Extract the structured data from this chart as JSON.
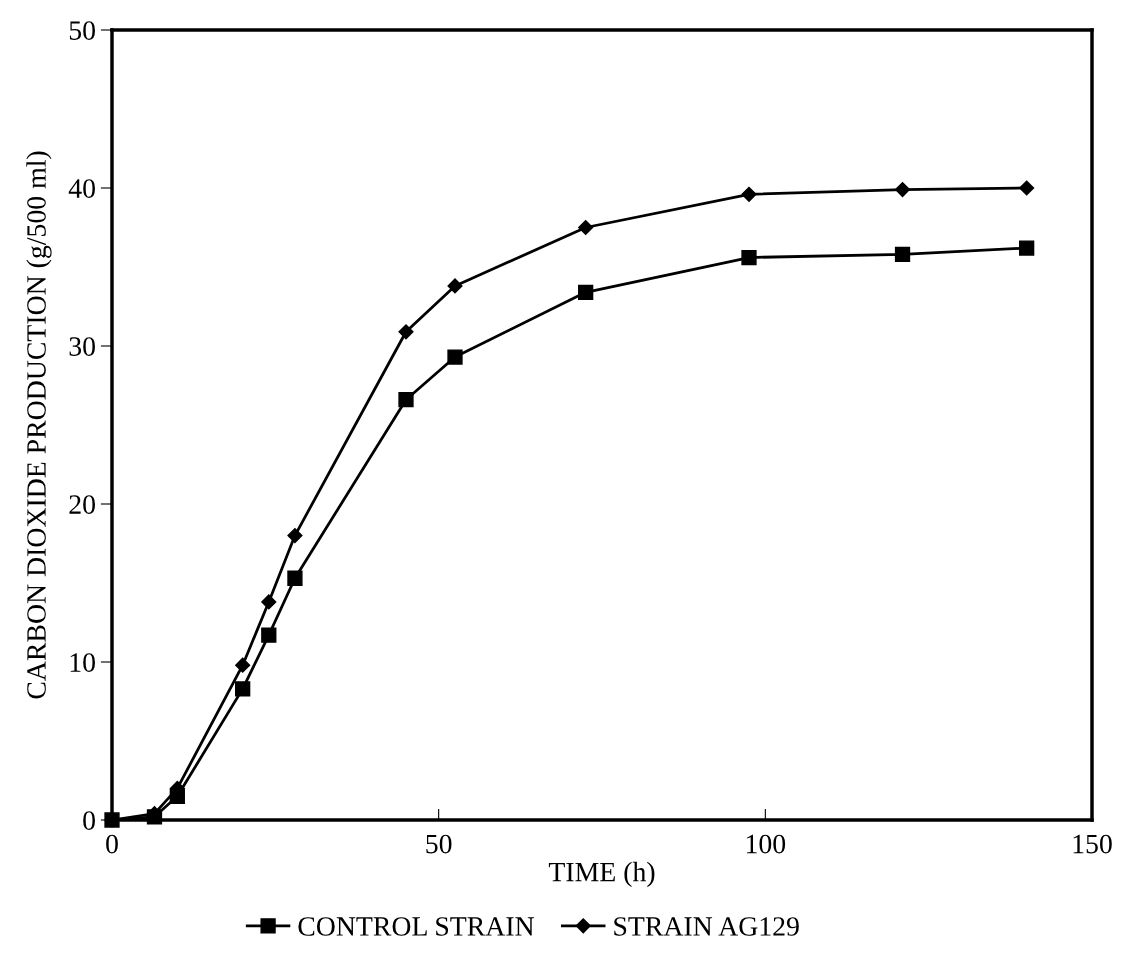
{
  "chart_data": {
    "type": "line",
    "xlabel": "TIME (h)",
    "ylabel": "CARBON DIOXIDE PRODUCTION (g/500 ml)",
    "xlim": [
      0,
      150
    ],
    "xticks": [
      0,
      50,
      100,
      150
    ],
    "ylim": [
      0,
      50
    ],
    "yticks": [
      0,
      10,
      20,
      30,
      40,
      50
    ],
    "grid": false,
    "legend": "bottom",
    "line_style": "solid",
    "series": [
      {
        "name": "CONTROL STRAIN",
        "color": "#000000",
        "marker": "square",
        "x": [
          0,
          6.5,
          10,
          20,
          24,
          28,
          45,
          52.5,
          72.5,
          97.5,
          121,
          140
        ],
        "values": [
          0,
          0.2,
          1.5,
          8.3,
          11.7,
          15.3,
          26.6,
          29.3,
          33.4,
          35.6,
          35.8,
          36.2
        ]
      },
      {
        "name": "STRAIN AG129",
        "color": "#000000",
        "marker": "diamond",
        "x": [
          0,
          6.5,
          10,
          20,
          24,
          28,
          45,
          52.5,
          72.5,
          97.5,
          121,
          140
        ],
        "values": [
          0,
          0.4,
          2.0,
          9.8,
          13.8,
          18.0,
          30.9,
          33.8,
          37.5,
          39.6,
          39.9,
          40.0
        ]
      }
    ]
  }
}
